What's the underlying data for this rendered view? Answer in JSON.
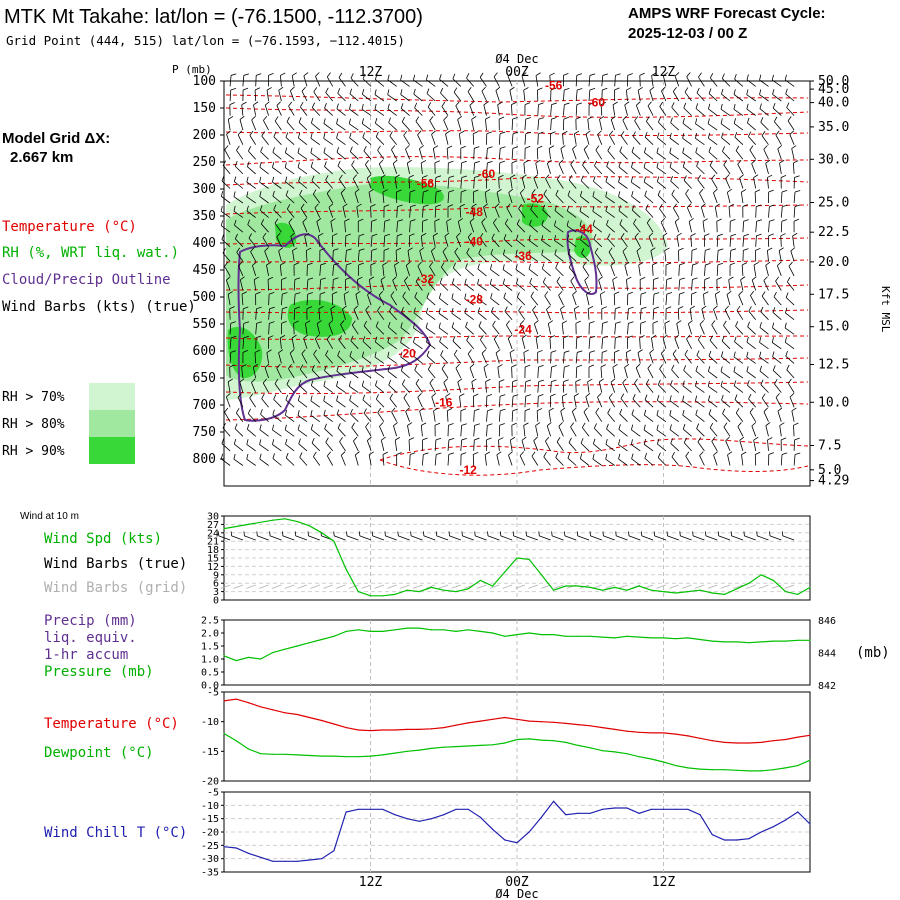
{
  "header": {
    "title": "MTK Mt Takahe:  lat/lon = (-76.1500, -112.3700)",
    "grid_point": "Grid Point (444, 515) lat/lon = (−76.1593, −112.4015)",
    "cycle_label": "AMPS WRF Forecast Cycle:",
    "cycle_value": "2025-12-03 / 00  Z"
  },
  "model_grid": {
    "label": "Model Grid ΔX:",
    "value": "2.667 km"
  },
  "colors": {
    "temperature": "#e00000",
    "rh": "#00c000",
    "cloud": "#603090",
    "wind": "#000000",
    "grid_barbs": "#b0b0b0",
    "wind_chill": "#2020b0",
    "rh70": "#d0f5d0",
    "rh80": "#a0e8a0",
    "rh90": "#38d838"
  },
  "legend_upper": {
    "temperature": "Temperature (°C)",
    "rh": "RH (%, WRT liq. wat.)",
    "cloud": "Cloud/Precip Outline",
    "wind": "Wind Barbs (kts) (true)",
    "rh70": "RH > 70%",
    "rh80": "RH > 80%",
    "rh90": "RH > 90%"
  },
  "legend_wind": {
    "header": "Wind at 10 m",
    "speed": "Wind Spd (kts)",
    "barbs_true": "Wind Barbs (true)",
    "barbs_grid": "Wind Barbs (grid)"
  },
  "legend_precip": {
    "line1": "Precip (mm)",
    "line2": "liq. equiv.",
    "line3": "1-hr accum",
    "line4": "Pressure (mb)",
    "right_units": "(mb)"
  },
  "legend_temp": {
    "temperature": "Temperature (°C)",
    "dewpoint": "Dewpoint (°C)"
  },
  "legend_chill": {
    "label": "Wind Chill T (°C)"
  },
  "time_axis": {
    "hours_range": [
      0,
      48
    ],
    "top_ticks": [
      {
        "hour": 12,
        "label": "12Z"
      },
      {
        "hour": 24,
        "label": "00Z"
      },
      {
        "hour": 36,
        "label": "12Z"
      }
    ],
    "date_label": "Ø4 Dec",
    "date_hour": 24
  },
  "chart_data": [
    {
      "id": "cross-section",
      "type": "contour",
      "title": "Vertical cross-section",
      "ylabel": "P (mb)",
      "right_label": "Kft MSL",
      "pressure_range": [
        100,
        850
      ],
      "pressure_ticks": [
        100,
        150,
        200,
        250,
        300,
        350,
        400,
        450,
        500,
        550,
        600,
        650,
        700,
        750,
        800
      ],
      "height_ticks": [
        {
          "p": 100,
          "label": "50.0"
        },
        {
          "p": 115,
          "label": "45.0"
        },
        {
          "p": 140,
          "label": "40.0"
        },
        {
          "p": 185,
          "label": "35.0"
        },
        {
          "p": 245,
          "label": "30.0"
        },
        {
          "p": 325,
          "label": "25.0"
        },
        {
          "p": 380,
          "label": "22.5"
        },
        {
          "p": 435,
          "label": "20.0"
        },
        {
          "p": 495,
          "label": "17.5"
        },
        {
          "p": 555,
          "label": "15.0"
        },
        {
          "p": 625,
          "label": "12.5"
        },
        {
          "p": 695,
          "label": "10.0"
        },
        {
          "p": 775,
          "label": "7.5"
        },
        {
          "p": 820,
          "label": "5.0"
        },
        {
          "p": 840,
          "label": "4.29"
        }
      ],
      "temperature_labels": [
        {
          "hour": 27,
          "p": 108,
          "label": "-56"
        },
        {
          "hour": 30.5,
          "p": 140,
          "label": "-60"
        },
        {
          "hour": 21.5,
          "p": 272,
          "label": "-60"
        },
        {
          "hour": 16.5,
          "p": 290,
          "label": "-56"
        },
        {
          "hour": 25.5,
          "p": 318,
          "label": "-52"
        },
        {
          "hour": 20.5,
          "p": 343,
          "label": "-48"
        },
        {
          "hour": 20.5,
          "p": 397,
          "label": "-40"
        },
        {
          "hour": 29.5,
          "p": 374,
          "label": "-44"
        },
        {
          "hour": 24.5,
          "p": 424,
          "label": "-36"
        },
        {
          "hour": 16.5,
          "p": 467,
          "label": "-32"
        },
        {
          "hour": 20.5,
          "p": 505,
          "label": "-28"
        },
        {
          "hour": 24.5,
          "p": 560,
          "label": "-24"
        },
        {
          "hour": 15.0,
          "p": 605,
          "label": "-20"
        },
        {
          "hour": 18.0,
          "p": 695,
          "label": "-16"
        },
        {
          "hour": 20.0,
          "p": 820,
          "label": "-12"
        }
      ]
    },
    {
      "id": "wind-10m",
      "type": "line",
      "title": "Wind at 10 m",
      "ylabel": "Wind Spd (kts)",
      "y_ticks": [
        0,
        3,
        6,
        9,
        12,
        15,
        18,
        21,
        24,
        27,
        30
      ],
      "ylim": [
        0,
        30
      ],
      "series": [
        {
          "name": "Wind Spd (kts)",
          "hours": [
            0,
            2,
            4,
            5,
            6,
            7,
            8,
            9,
            10,
            11,
            12,
            13,
            14,
            15,
            16,
            17,
            18,
            19,
            20,
            21,
            22,
            23,
            24,
            25,
            26,
            27,
            28,
            29,
            30,
            31,
            32,
            33,
            34,
            35,
            36,
            37,
            38,
            39,
            40,
            41,
            42,
            43,
            44,
            45,
            46,
            47,
            48
          ],
          "values": [
            25.5,
            27,
            28.5,
            29,
            28,
            26.5,
            24,
            21,
            11,
            3,
            1.5,
            1.5,
            2,
            3.5,
            3,
            4.5,
            3.5,
            3,
            4,
            7,
            5,
            10,
            15,
            14.5,
            9,
            3.5,
            5,
            5,
            4.5,
            3.5,
            4.5,
            3.5,
            5,
            3.5,
            3,
            2.5,
            3,
            3.5,
            2.5,
            2,
            4,
            6,
            9,
            7,
            3,
            2,
            4.5
          ]
        }
      ]
    },
    {
      "id": "precip-pressure",
      "type": "line",
      "title": "Precipitation and surface pressure",
      "ylabel_left": "Precip (mm)",
      "ylabel_right": "(mb)",
      "left_ticks": [
        "2.5",
        "2.0",
        "1.5",
        "1.0",
        "0.5",
        "0.0"
      ],
      "left_range": [
        0,
        2.5
      ],
      "right_ticks": [
        "846",
        "844",
        "842"
      ],
      "right_range": [
        842,
        846
      ],
      "series": [
        {
          "name": "Pressure (mb)",
          "hours": [
            0,
            1,
            2,
            3,
            4,
            5,
            6,
            7,
            8,
            9,
            10,
            11,
            12,
            13,
            14,
            15,
            16,
            17,
            18,
            19,
            20,
            21,
            22,
            23,
            24,
            25,
            26,
            27,
            28,
            29,
            30,
            31,
            32,
            33,
            34,
            35,
            36,
            37,
            38,
            39,
            40,
            41,
            42,
            43,
            44,
            45,
            46,
            47,
            48
          ],
          "values": [
            843.8,
            843.5,
            843.7,
            843.6,
            844.0,
            844.2,
            844.4,
            844.6,
            844.8,
            845.0,
            845.3,
            845.4,
            845.3,
            845.3,
            845.4,
            845.5,
            845.5,
            845.4,
            845.4,
            845.3,
            845.4,
            845.3,
            845.2,
            845.0,
            845.1,
            845.2,
            845.1,
            845.1,
            845.0,
            845.0,
            845.0,
            844.95,
            844.9,
            845.0,
            844.95,
            844.9,
            844.9,
            844.85,
            844.9,
            844.8,
            844.7,
            844.65,
            844.65,
            844.6,
            844.65,
            844.7,
            844.7,
            844.75,
            844.75
          ]
        }
      ]
    },
    {
      "id": "temp-dewpoint",
      "type": "line",
      "title": "Temperature and dewpoint",
      "ylabel": "°C",
      "y_ticks": [
        "-5",
        "-10",
        "-15",
        "-20"
      ],
      "ylim": [
        -20,
        -5
      ],
      "series": [
        {
          "name": "Temperature (°C)",
          "hours": [
            0,
            1,
            2,
            3,
            4,
            5,
            6,
            7,
            8,
            9,
            10,
            11,
            12,
            13,
            14,
            15,
            16,
            17,
            18,
            19,
            20,
            21,
            22,
            23,
            24,
            25,
            26,
            27,
            28,
            29,
            30,
            31,
            32,
            33,
            34,
            35,
            36,
            37,
            38,
            39,
            40,
            41,
            42,
            43,
            44,
            45,
            46,
            47,
            48
          ],
          "values": [
            -6.5,
            -6.2,
            -6.8,
            -7.5,
            -8.0,
            -8.5,
            -8.8,
            -9.3,
            -9.8,
            -10.4,
            -11.0,
            -11.4,
            -11.5,
            -11.4,
            -11.4,
            -11.3,
            -11.3,
            -11.2,
            -11.0,
            -10.6,
            -10.2,
            -9.9,
            -9.6,
            -9.3,
            -9.6,
            -9.9,
            -10.0,
            -10.1,
            -10.3,
            -10.5,
            -10.7,
            -11.0,
            -11.3,
            -11.6,
            -11.8,
            -11.9,
            -11.9,
            -12.1,
            -12.4,
            -12.8,
            -13.2,
            -13.5,
            -13.6,
            -13.6,
            -13.5,
            -13.2,
            -13.0,
            -12.6,
            -12.3
          ]
        },
        {
          "name": "Dewpoint (°C)",
          "hours": [
            0,
            1,
            2,
            3,
            4,
            5,
            6,
            7,
            8,
            9,
            10,
            11,
            12,
            13,
            14,
            15,
            16,
            17,
            18,
            19,
            20,
            21,
            22,
            23,
            24,
            25,
            26,
            27,
            28,
            29,
            30,
            31,
            32,
            33,
            34,
            35,
            36,
            37,
            38,
            39,
            40,
            41,
            42,
            43,
            44,
            45,
            46,
            47,
            48
          ],
          "values": [
            -12.0,
            -13.2,
            -14.6,
            -15.4,
            -15.5,
            -15.5,
            -15.6,
            -15.7,
            -15.8,
            -15.8,
            -15.9,
            -15.9,
            -15.8,
            -15.6,
            -15.3,
            -15.0,
            -14.8,
            -14.5,
            -14.3,
            -14.2,
            -14.1,
            -14.0,
            -13.9,
            -13.6,
            -13.0,
            -12.9,
            -13.1,
            -13.2,
            -13.5,
            -14.0,
            -14.4,
            -14.9,
            -15.1,
            -15.4,
            -15.9,
            -16.3,
            -16.8,
            -17.4,
            -17.8,
            -18.0,
            -18.1,
            -18.1,
            -18.2,
            -18.3,
            -18.3,
            -18.1,
            -17.8,
            -17.4,
            -16.5
          ]
        }
      ]
    },
    {
      "id": "wind-chill",
      "type": "line",
      "title": "Wind chill",
      "ylabel": "Wind Chill T (°C)",
      "y_ticks": [
        "-5",
        "-10",
        "-15",
        "-20",
        "-25",
        "-30",
        "-35"
      ],
      "ylim": [
        -35,
        -5
      ],
      "series": [
        {
          "name": "Wind Chill T (°C)",
          "hours": [
            0,
            1,
            2,
            3,
            4,
            5,
            6,
            7,
            8,
            9,
            10,
            11,
            12,
            13,
            14,
            15,
            16,
            17,
            18,
            19,
            20,
            21,
            22,
            23,
            24,
            25,
            26,
            27,
            28,
            29,
            30,
            31,
            32,
            33,
            34,
            35,
            36,
            37,
            38,
            39,
            40,
            41,
            42,
            43,
            44,
            45,
            46,
            47,
            48
          ],
          "values": [
            -25.5,
            -26.0,
            -28.0,
            -29.5,
            -31.0,
            -31.0,
            -31.0,
            -30.5,
            -30.0,
            -27.0,
            -12.5,
            -11.5,
            -11.5,
            -11.5,
            -13.5,
            -15.0,
            -16.0,
            -15.0,
            -13.5,
            -11.5,
            -11.5,
            -14.5,
            -19.0,
            -23.0,
            -24.0,
            -20.0,
            -14.5,
            -8.5,
            -13.5,
            -13.0,
            -13.0,
            -11.5,
            -11.0,
            -11.0,
            -13.0,
            -11.5,
            -11.5,
            -11.5,
            -11.5,
            -13.5,
            -21.0,
            -23.0,
            -23.0,
            -22.5,
            -20.0,
            -18.0,
            -15.5,
            -12.5,
            -17.0
          ]
        }
      ]
    }
  ]
}
